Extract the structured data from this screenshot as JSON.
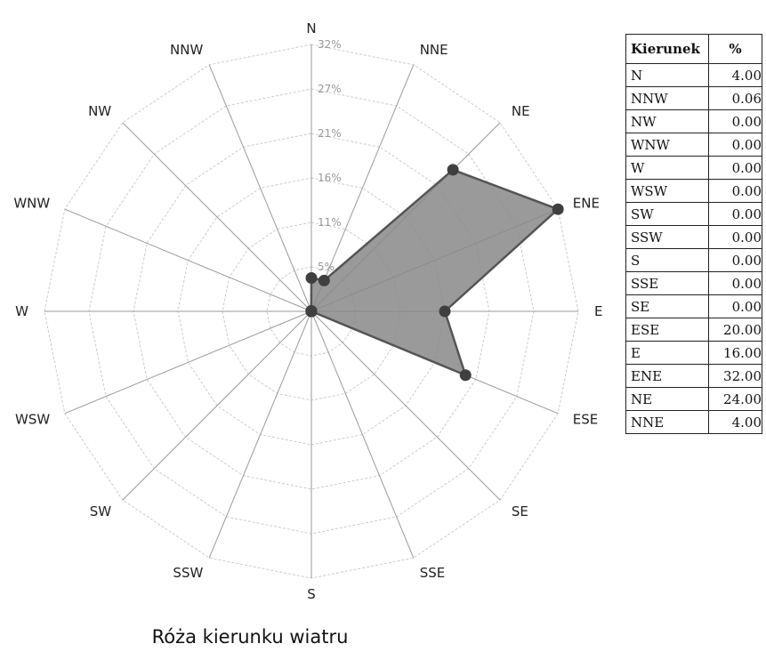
{
  "chart_data": {
    "type": "radar",
    "title": "Róża kierunku wiatru",
    "directions": [
      "N",
      "NNE",
      "NE",
      "ENE",
      "E",
      "ESE",
      "SE",
      "SSE",
      "S",
      "SSW",
      "SW",
      "WSW",
      "W",
      "WNW",
      "NW",
      "NNW"
    ],
    "values": [
      4.0,
      4.0,
      24.0,
      32.0,
      16.0,
      20.0,
      0.0,
      0.0,
      0.0,
      0.0,
      0.0,
      0.0,
      0.0,
      0.0,
      0.0,
      0.06
    ],
    "ring_labels": [
      "5%",
      "11%",
      "16%",
      "21%",
      "27%",
      "32%"
    ],
    "rlim": [
      0,
      32
    ],
    "grid": true,
    "colors": {
      "fill": "#888888",
      "stroke": "#555555",
      "marker": "#3f3f3f",
      "grid": "#cccccc"
    }
  },
  "table": {
    "headers": [
      "Kierunek",
      "%"
    ],
    "rows": [
      [
        "N",
        "4.00"
      ],
      [
        "NNW",
        "0.06"
      ],
      [
        "NW",
        "0.00"
      ],
      [
        "WNW",
        "0.00"
      ],
      [
        "W",
        "0.00"
      ],
      [
        "WSW",
        "0.00"
      ],
      [
        "SW",
        "0.00"
      ],
      [
        "SSW",
        "0.00"
      ],
      [
        "S",
        "0.00"
      ],
      [
        "SSE",
        "0.00"
      ],
      [
        "SE",
        "0.00"
      ],
      [
        "ESE",
        "20.00"
      ],
      [
        "E",
        "16.00"
      ],
      [
        "ENE",
        "32.00"
      ],
      [
        "NE",
        "24.00"
      ],
      [
        "NNE",
        "4.00"
      ]
    ]
  }
}
